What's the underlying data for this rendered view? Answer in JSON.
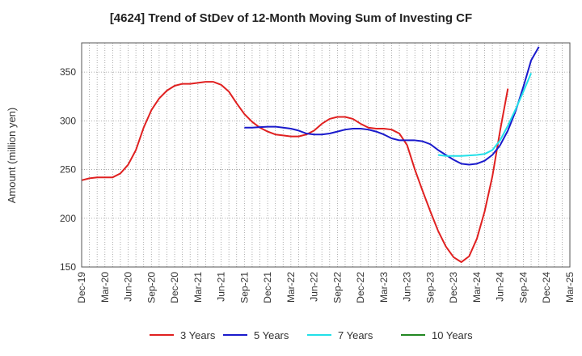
{
  "chart_data": {
    "type": "line",
    "title": "[4624]  Trend of StDev of 12-Month Moving Sum of Investing CF",
    "xlabel": "",
    "ylabel": "Amount (million yen)",
    "ylim": [
      150,
      380
    ],
    "yticks": [
      150,
      200,
      250,
      300,
      350
    ],
    "x_tick_labels": [
      "Dec-19",
      "Mar-20",
      "Jun-20",
      "Sep-20",
      "Dec-20",
      "Mar-21",
      "Jun-21",
      "Sep-21",
      "Dec-21",
      "Mar-22",
      "Jun-22",
      "Sep-22",
      "Dec-22",
      "Mar-23",
      "Jun-23",
      "Sep-23",
      "Dec-23",
      "Mar-24",
      "Jun-24",
      "Sep-24",
      "Dec-24",
      "Mar-25"
    ],
    "grid": true,
    "legend_position": "bottom",
    "series": [
      {
        "name": "3 Years",
        "color": "#e02020",
        "start_index": 0,
        "values": [
          239,
          241,
          242,
          242,
          242,
          246,
          255,
          270,
          293,
          311,
          323,
          331,
          336,
          338,
          338,
          339,
          340,
          340,
          337,
          330,
          318,
          307,
          299,
          293,
          289,
          286,
          285,
          284,
          284,
          286,
          290,
          297,
          302,
          304,
          304,
          302,
          297,
          293,
          292,
          292,
          291,
          287,
          275,
          250,
          228,
          207,
          187,
          171,
          160,
          155,
          161,
          179,
          207,
          243,
          290,
          333
        ]
      },
      {
        "name": "5 Years",
        "color": "#1a1acc",
        "start_index": 21,
        "values": [
          293,
          293,
          293.5,
          294,
          294,
          293,
          292,
          290,
          287,
          286,
          286,
          287,
          289,
          291,
          292,
          292,
          291,
          289,
          286,
          282,
          280,
          280,
          280,
          279,
          276,
          270,
          265,
          260,
          256,
          255,
          256,
          259,
          265,
          275,
          290,
          310,
          335,
          362,
          376
        ]
      },
      {
        "name": "7 Years",
        "color": "#22e0e8",
        "start_index": 46,
        "values": [
          265,
          264,
          264,
          264,
          264.5,
          265,
          266,
          270,
          280,
          295,
          312,
          330,
          349
        ]
      },
      {
        "name": "10 Years",
        "color": "#228822",
        "start_index": 0,
        "values": []
      }
    ]
  }
}
